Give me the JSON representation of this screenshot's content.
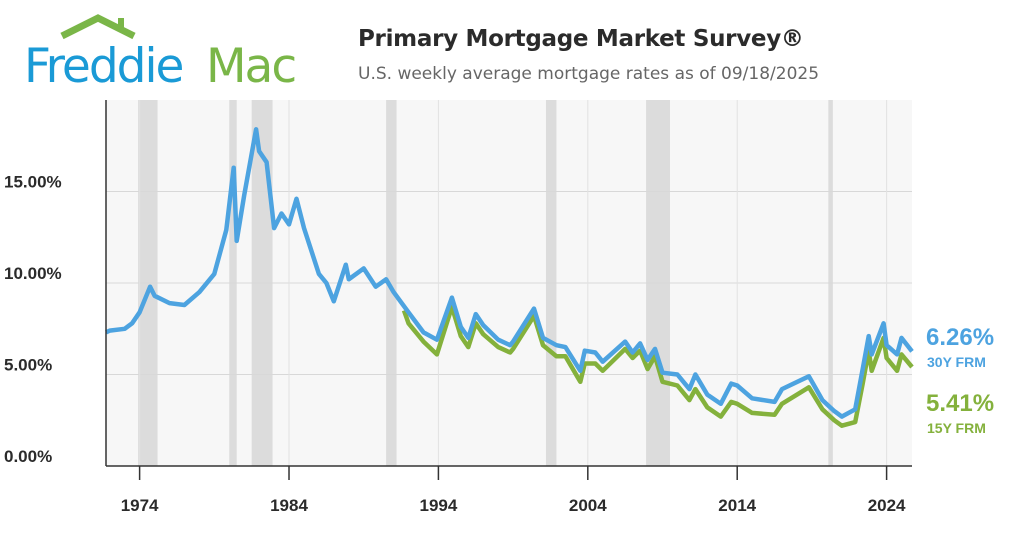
{
  "logo": {
    "text_part1": "Freddie",
    "text_part2": "Mac",
    "colors": {
      "blue": "#1a9ad6",
      "green": "#7ab648"
    }
  },
  "header": {
    "title": "Primary Mortgage Market Survey®",
    "subtitle": "U.S. weekly average mortgage rates as of 09/18/2025"
  },
  "chart_data": {
    "type": "line",
    "title": "Primary Mortgage Market Survey®",
    "subtitle": "U.S. weekly average mortgage rates as of 09/18/2025",
    "xlim": [
      1971.75,
      2025.7
    ],
    "ylim": [
      0,
      20
    ],
    "x_ticks": [
      1974,
      1984,
      1994,
      2004,
      2014,
      2024
    ],
    "x_tick_labels": [
      "1974",
      "1984",
      "1994",
      "2004",
      "2014",
      "2024"
    ],
    "y_ticks": [
      0,
      5,
      10,
      15
    ],
    "y_tick_labels": [
      "0.00%",
      "5.00%",
      "10.00%",
      "15.00%"
    ],
    "grid": true,
    "recession_shading": [
      [
        1973.9,
        1975.2
      ],
      [
        1980.0,
        1980.5
      ],
      [
        1981.5,
        1982.9
      ],
      [
        1990.5,
        1991.2
      ],
      [
        2001.2,
        2001.9
      ],
      [
        2007.9,
        2009.5
      ],
      [
        2020.1,
        2020.4
      ]
    ],
    "series": [
      {
        "name": "30Y FRM",
        "end_label": "6.26%",
        "color": "#4da3e0",
        "points": [
          [
            1971.75,
            7.3
          ],
          [
            1972,
            7.4
          ],
          [
            1973,
            7.5
          ],
          [
            1973.5,
            7.8
          ],
          [
            1974,
            8.4
          ],
          [
            1974.7,
            9.8
          ],
          [
            1975,
            9.3
          ],
          [
            1976,
            8.9
          ],
          [
            1977,
            8.8
          ],
          [
            1978,
            9.5
          ],
          [
            1979,
            10.5
          ],
          [
            1979.8,
            12.9
          ],
          [
            1980.3,
            16.3
          ],
          [
            1980.5,
            12.3
          ],
          [
            1981,
            14.8
          ],
          [
            1981.8,
            18.4
          ],
          [
            1982,
            17.2
          ],
          [
            1982.5,
            16.6
          ],
          [
            1983,
            13.0
          ],
          [
            1983.5,
            13.8
          ],
          [
            1984,
            13.2
          ],
          [
            1984.5,
            14.6
          ],
          [
            1985,
            13.0
          ],
          [
            1986,
            10.5
          ],
          [
            1986.5,
            10.0
          ],
          [
            1987,
            9.0
          ],
          [
            1987.8,
            11.0
          ],
          [
            1988,
            10.2
          ],
          [
            1989,
            10.8
          ],
          [
            1989.8,
            9.8
          ],
          [
            1990.5,
            10.2
          ],
          [
            1991,
            9.5
          ],
          [
            1992,
            8.4
          ],
          [
            1993,
            7.3
          ],
          [
            1993.9,
            6.9
          ],
          [
            1994.9,
            9.2
          ],
          [
            1995.5,
            7.6
          ],
          [
            1996,
            7.0
          ],
          [
            1996.5,
            8.3
          ],
          [
            1997,
            7.7
          ],
          [
            1998,
            6.9
          ],
          [
            1998.8,
            6.6
          ],
          [
            1999,
            6.8
          ],
          [
            2000.4,
            8.6
          ],
          [
            2001,
            7.0
          ],
          [
            2001.9,
            6.6
          ],
          [
            2002.5,
            6.5
          ],
          [
            2003.5,
            5.2
          ],
          [
            2003.8,
            6.3
          ],
          [
            2004.5,
            6.2
          ],
          [
            2005,
            5.7
          ],
          [
            2006.5,
            6.8
          ],
          [
            2007,
            6.2
          ],
          [
            2007.5,
            6.7
          ],
          [
            2008,
            5.8
          ],
          [
            2008.5,
            6.4
          ],
          [
            2009,
            5.1
          ],
          [
            2010,
            5.0
          ],
          [
            2010.8,
            4.2
          ],
          [
            2011.2,
            5.0
          ],
          [
            2012,
            3.9
          ],
          [
            2012.9,
            3.4
          ],
          [
            2013.6,
            4.5
          ],
          [
            2014,
            4.4
          ],
          [
            2015,
            3.7
          ],
          [
            2016.5,
            3.5
          ],
          [
            2017,
            4.2
          ],
          [
            2018.8,
            4.9
          ],
          [
            2019.7,
            3.6
          ],
          [
            2020.5,
            3.0
          ],
          [
            2021,
            2.7
          ],
          [
            2021.9,
            3.1
          ],
          [
            2022.4,
            5.3
          ],
          [
            2022.8,
            7.1
          ],
          [
            2023,
            6.1
          ],
          [
            2023.8,
            7.8
          ],
          [
            2024,
            6.6
          ],
          [
            2024.7,
            6.1
          ],
          [
            2025,
            7.0
          ],
          [
            2025.7,
            6.26
          ]
        ]
      },
      {
        "name": "15Y FRM",
        "end_label": "5.41%",
        "color": "#84b13c",
        "points": [
          [
            1991.7,
            8.5
          ],
          [
            1992,
            7.8
          ],
          [
            1993,
            6.8
          ],
          [
            1993.9,
            6.1
          ],
          [
            1994.9,
            8.7
          ],
          [
            1995.5,
            7.1
          ],
          [
            1996,
            6.5
          ],
          [
            1996.5,
            7.8
          ],
          [
            1997,
            7.2
          ],
          [
            1998,
            6.5
          ],
          [
            1998.8,
            6.2
          ],
          [
            1999,
            6.4
          ],
          [
            2000.4,
            8.2
          ],
          [
            2001,
            6.6
          ],
          [
            2001.9,
            6.0
          ],
          [
            2002.5,
            6.0
          ],
          [
            2003.5,
            4.6
          ],
          [
            2003.8,
            5.6
          ],
          [
            2004.5,
            5.6
          ],
          [
            2005,
            5.2
          ],
          [
            2006.5,
            6.4
          ],
          [
            2007,
            5.9
          ],
          [
            2007.5,
            6.3
          ],
          [
            2008,
            5.3
          ],
          [
            2008.5,
            6.0
          ],
          [
            2009,
            4.6
          ],
          [
            2010,
            4.4
          ],
          [
            2010.8,
            3.6
          ],
          [
            2011.2,
            4.2
          ],
          [
            2012,
            3.2
          ],
          [
            2012.9,
            2.7
          ],
          [
            2013.6,
            3.5
          ],
          [
            2014,
            3.4
          ],
          [
            2015,
            2.9
          ],
          [
            2016.5,
            2.8
          ],
          [
            2017,
            3.4
          ],
          [
            2018.8,
            4.3
          ],
          [
            2019.7,
            3.1
          ],
          [
            2020.5,
            2.5
          ],
          [
            2021,
            2.2
          ],
          [
            2021.9,
            2.4
          ],
          [
            2022.4,
            4.5
          ],
          [
            2022.8,
            6.3
          ],
          [
            2023,
            5.2
          ],
          [
            2023.8,
            7.0
          ],
          [
            2024,
            5.9
          ],
          [
            2024.7,
            5.2
          ],
          [
            2025,
            6.1
          ],
          [
            2025.7,
            5.41
          ]
        ]
      }
    ]
  }
}
